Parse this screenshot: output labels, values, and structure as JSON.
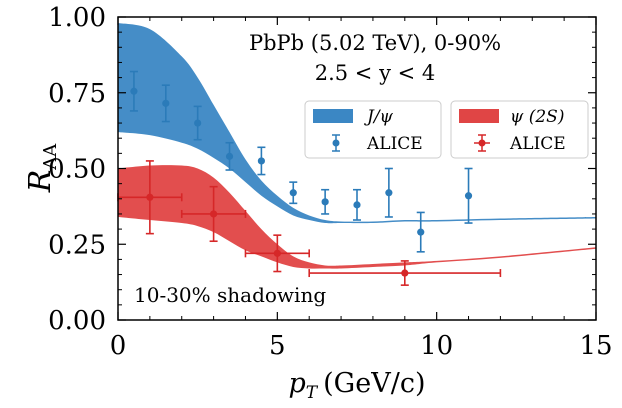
{
  "chart_data": {
    "type": "line",
    "xlabel_main": "p",
    "xlabel_sub": "T",
    "xlabel_unit": "(GeV/c)",
    "ylabel_main": "R",
    "ylabel_sub": "AA",
    "xlim": [
      0,
      15
    ],
    "ylim": [
      0,
      1
    ],
    "xticks": [
      0,
      5,
      10,
      15
    ],
    "xtick_labels": [
      "0",
      "5",
      "10",
      "15"
    ],
    "yticks": [
      0,
      0.25,
      0.5,
      0.75,
      1.0
    ],
    "ytick_labels": [
      "0.00",
      "0.25",
      "0.50",
      "0.75",
      "1.00"
    ],
    "annotation_line1": "PbPb (5.02 TeV), 0-90%",
    "annotation_line2": "2.5 < y < 4",
    "annotation_bottom": "10-30% shadowing",
    "legend": [
      {
        "label": "J/ψ",
        "kind": "band",
        "color": "#3b87c4"
      },
      {
        "label": "ψ (2S)",
        "kind": "band",
        "color": "#e04545"
      },
      {
        "label": "ALICE",
        "kind": "errorbar",
        "color": "#2b7bb9"
      },
      {
        "label": "ALICE",
        "kind": "errorbar",
        "color": "#d62728"
      }
    ],
    "bands": [
      {
        "name": "J/ψ",
        "color": "#3b87c4",
        "x": [
          0,
          1,
          2,
          2.5,
          3,
          3.5,
          4,
          4.5,
          5,
          5.5,
          6,
          6.5,
          7,
          8,
          9,
          10,
          12,
          15
        ],
        "upper": [
          0.98,
          0.96,
          0.87,
          0.8,
          0.71,
          0.62,
          0.53,
          0.46,
          0.41,
          0.37,
          0.345,
          0.33,
          0.325,
          0.325,
          0.33,
          0.33,
          0.335,
          0.34
        ],
        "lower": [
          0.62,
          0.61,
          0.585,
          0.565,
          0.535,
          0.5,
          0.455,
          0.41,
          0.375,
          0.345,
          0.33,
          0.32,
          0.32,
          0.32,
          0.325,
          0.325,
          0.33,
          0.335
        ]
      },
      {
        "name": "ψ (2S)",
        "color": "#e04545",
        "x": [
          0,
          1,
          2,
          2.5,
          3,
          3.5,
          4,
          4.5,
          5,
          5.5,
          6,
          6.5,
          7,
          8,
          9,
          10,
          12,
          15
        ],
        "upper": [
          0.5,
          0.51,
          0.51,
          0.5,
          0.47,
          0.42,
          0.36,
          0.3,
          0.25,
          0.21,
          0.19,
          0.18,
          0.18,
          0.185,
          0.19,
          0.195,
          0.21,
          0.24
        ],
        "lower": [
          0.34,
          0.33,
          0.32,
          0.31,
          0.29,
          0.26,
          0.23,
          0.21,
          0.19,
          0.175,
          0.17,
          0.17,
          0.17,
          0.175,
          0.18,
          0.19,
          0.205,
          0.235
        ]
      }
    ],
    "series": [
      {
        "name": "ALICE",
        "color": "#2b7bb9",
        "points": [
          {
            "x": 0.5,
            "y": 0.755,
            "yerr": 0.065,
            "xerr": 0
          },
          {
            "x": 1.5,
            "y": 0.715,
            "yerr": 0.06,
            "xerr": 0
          },
          {
            "x": 2.5,
            "y": 0.65,
            "yerr": 0.055,
            "xerr": 0
          },
          {
            "x": 3.5,
            "y": 0.54,
            "yerr": 0.045,
            "xerr": 0
          },
          {
            "x": 4.5,
            "y": 0.525,
            "yerr": 0.045,
            "xerr": 0
          },
          {
            "x": 5.5,
            "y": 0.42,
            "yerr": 0.035,
            "xerr": 0
          },
          {
            "x": 6.5,
            "y": 0.39,
            "yerr": 0.04,
            "xerr": 0
          },
          {
            "x": 7.5,
            "y": 0.38,
            "yerr": 0.05,
            "xerr": 0
          },
          {
            "x": 8.5,
            "y": 0.42,
            "yerr": 0.08,
            "xerr": 0
          },
          {
            "x": 9.5,
            "y": 0.29,
            "yerr": 0.065,
            "xerr": 0
          },
          {
            "x": 11,
            "y": 0.41,
            "yerr": 0.09,
            "xerr": 0
          }
        ]
      },
      {
        "name": "ALICE",
        "color": "#d62728",
        "points": [
          {
            "x": 1,
            "y": 0.405,
            "yerr": 0.12,
            "xerr": 1
          },
          {
            "x": 3,
            "y": 0.35,
            "yerr": 0.09,
            "xerr": 1
          },
          {
            "x": 5,
            "y": 0.22,
            "yerr": 0.06,
            "xerr": 1
          },
          {
            "x": 9,
            "y": 0.155,
            "yerr": 0.04,
            "xerr": 3
          }
        ]
      }
    ]
  }
}
